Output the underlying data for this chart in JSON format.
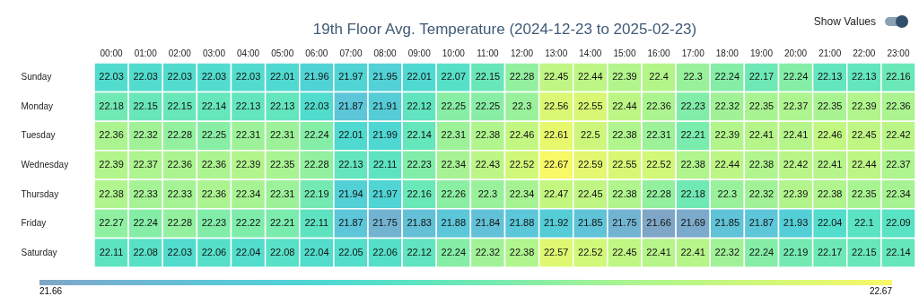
{
  "chart_data": {
    "type": "heatmap",
    "title": "19th Floor Avg. Temperature (2024-12-23 to 2025-02-23)",
    "categories": [
      "00:00",
      "01:00",
      "02:00",
      "03:00",
      "04:00",
      "05:00",
      "06:00",
      "07:00",
      "08:00",
      "09:00",
      "10:00",
      "11:00",
      "12:00",
      "13:00",
      "14:00",
      "15:00",
      "16:00",
      "17:00",
      "18:00",
      "19:00",
      "20:00",
      "21:00",
      "22:00",
      "23:00"
    ],
    "y_categories": [
      "Sunday",
      "Monday",
      "Tuesday",
      "Wednesday",
      "Thursday",
      "Friday",
      "Saturday"
    ],
    "cells": [
      [
        22.03,
        22.03,
        22.03,
        22.03,
        22.03,
        22.01,
        21.96,
        21.97,
        21.95,
        22.01,
        22.07,
        22.15,
        22.28,
        22.45,
        22.44,
        22.39,
        22.4,
        22.3,
        22.24,
        22.17,
        22.24,
        22.13,
        22.13,
        22.16
      ],
      [
        22.18,
        22.15,
        22.15,
        22.14,
        22.13,
        22.13,
        22.03,
        21.87,
        21.91,
        22.12,
        22.25,
        22.25,
        22.3,
        22.56,
        22.55,
        22.44,
        22.36,
        22.23,
        22.32,
        22.35,
        22.37,
        22.35,
        22.39,
        22.36
      ],
      [
        22.36,
        22.32,
        22.28,
        22.25,
        22.31,
        22.31,
        22.24,
        22.01,
        21.99,
        22.14,
        22.31,
        22.38,
        22.46,
        22.61,
        22.5,
        22.38,
        22.31,
        22.21,
        22.39,
        22.41,
        22.41,
        22.46,
        22.45,
        22.42
      ],
      [
        22.39,
        22.37,
        22.36,
        22.36,
        22.39,
        22.35,
        22.28,
        22.13,
        22.11,
        22.23,
        22.34,
        22.43,
        22.52,
        22.67,
        22.59,
        22.55,
        22.52,
        22.38,
        22.44,
        22.38,
        22.42,
        22.41,
        22.44,
        22.37
      ],
      [
        22.38,
        22.33,
        22.33,
        22.36,
        22.34,
        22.31,
        22.19,
        21.94,
        21.97,
        22.16,
        22.26,
        22.3,
        22.34,
        22.47,
        22.45,
        22.38,
        22.28,
        22.18,
        22.3,
        22.32,
        22.39,
        22.38,
        22.35,
        22.34
      ],
      [
        22.27,
        22.24,
        22.28,
        22.23,
        22.22,
        22.21,
        22.11,
        21.87,
        21.75,
        21.83,
        21.88,
        21.84,
        21.88,
        21.92,
        21.85,
        21.75,
        21.66,
        21.69,
        21.85,
        21.87,
        21.93,
        22.04,
        22.1,
        22.09
      ],
      [
        22.11,
        22.08,
        22.03,
        22.06,
        22.04,
        22.08,
        22.04,
        22.05,
        22.06,
        22.12,
        22.24,
        22.32,
        22.38,
        22.57,
        22.52,
        22.45,
        22.41,
        22.41,
        22.32,
        22.24,
        22.19,
        22.17,
        22.15,
        22.14
      ]
    ],
    "clim": [
      21.66,
      22.67
    ],
    "cticks": [
      21.66,
      22.67
    ],
    "data_labels": true,
    "annotations": [
      "Show Values"
    ]
  }
}
